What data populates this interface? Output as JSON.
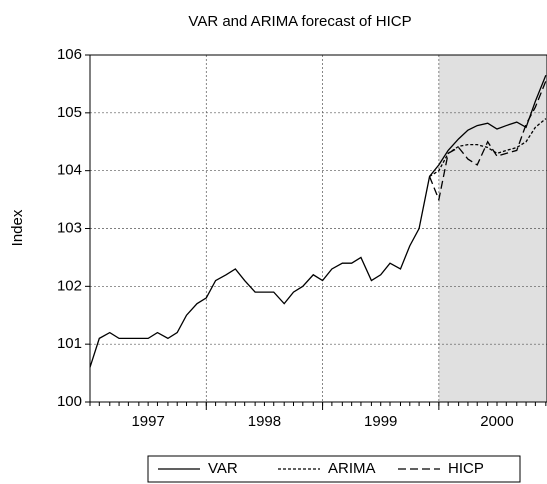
{
  "chart_data": {
    "type": "line",
    "title": "VAR and ARIMA forecast of HICP",
    "y_label": "Index",
    "x": [
      1997,
      1997.08,
      1997.17,
      1997.25,
      1997.33,
      1997.42,
      1997.5,
      1997.58,
      1997.67,
      1997.75,
      1997.83,
      1997.92,
      1998,
      1998.08,
      1998.17,
      1998.25,
      1998.33,
      1998.42,
      1998.5,
      1998.58,
      1998.67,
      1998.75,
      1998.83,
      1998.92,
      1999,
      1999.08,
      1999.17,
      1999.25,
      1999.33,
      1999.42,
      1999.5,
      1999.58,
      1999.67,
      1999.75,
      1999.83,
      1999.92,
      2000,
      2000.08,
      2000.17,
      2000.25,
      2000.33,
      2000.42,
      2000.5,
      2000.58,
      2000.67,
      2000.75,
      2000.83,
      2000.92
    ],
    "series": [
      {
        "name": "VAR",
        "color": "#000000",
        "dash": "none",
        "values": [
          100.6,
          101.1,
          101.2,
          101.1,
          101.1,
          101.1,
          101.1,
          101.2,
          101.1,
          101.2,
          101.5,
          101.7,
          101.8,
          102.1,
          102.2,
          102.3,
          102.1,
          101.9,
          101.9,
          101.9,
          101.7,
          101.9,
          102.0,
          102.2,
          102.1,
          102.3,
          102.4,
          102.4,
          102.5,
          102.1,
          102.2,
          102.4,
          102.3,
          102.7,
          103.0,
          103.9,
          104.1,
          104.35,
          104.55,
          104.7,
          104.78,
          104.82,
          104.72,
          104.78,
          104.84,
          104.75,
          105.2,
          105.65
        ]
      },
      {
        "name": "ARIMA",
        "color": "#000000",
        "dash": "3,2",
        "values": [
          null,
          null,
          null,
          null,
          null,
          null,
          null,
          null,
          null,
          null,
          null,
          null,
          null,
          null,
          null,
          null,
          null,
          null,
          null,
          null,
          null,
          null,
          null,
          null,
          null,
          null,
          null,
          null,
          null,
          null,
          null,
          null,
          null,
          null,
          null,
          103.9,
          104.0,
          104.3,
          104.42,
          104.45,
          104.45,
          104.4,
          104.3,
          104.35,
          104.4,
          104.5,
          104.75,
          104.9
        ]
      },
      {
        "name": "HICP",
        "color": "#000000",
        "dash": "8,4",
        "values": [
          null,
          null,
          null,
          null,
          null,
          null,
          null,
          null,
          null,
          null,
          null,
          null,
          null,
          null,
          null,
          null,
          null,
          null,
          null,
          null,
          null,
          null,
          null,
          null,
          null,
          null,
          null,
          null,
          null,
          null,
          null,
          null,
          null,
          null,
          null,
          103.9,
          103.5,
          104.3,
          104.4,
          104.2,
          104.1,
          104.5,
          104.25,
          104.3,
          104.35,
          104.8,
          105.1,
          105.55
        ]
      }
    ],
    "xlim": [
      1997,
      2000.93
    ],
    "xticks": [
      {
        "value": 1997.5,
        "label": "1997"
      },
      {
        "value": 1998.5,
        "label": "1998"
      },
      {
        "value": 1999.5,
        "label": "1999"
      },
      {
        "value": 2000.5,
        "label": "2000"
      }
    ],
    "xgrid": [
      1998,
      1999,
      2000
    ],
    "shade_from": 2000,
    "shade_color": "#e0e0e0",
    "ylim": [
      100,
      106
    ],
    "yticks": [
      100,
      101,
      102,
      103,
      104,
      105,
      106
    ],
    "grid": true,
    "legend": "bottom"
  }
}
